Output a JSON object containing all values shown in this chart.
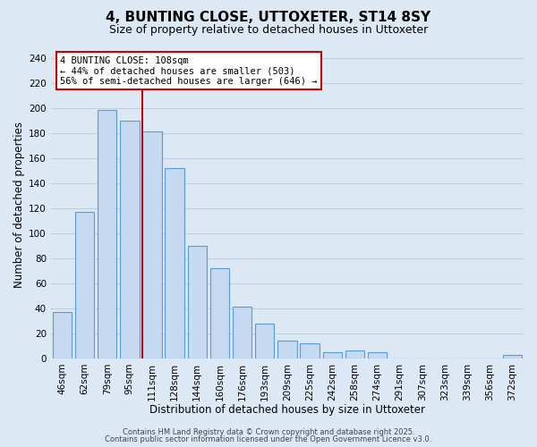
{
  "title": "4, BUNTING CLOSE, UTTOXETER, ST14 8SY",
  "subtitle": "Size of property relative to detached houses in Uttoxeter",
  "xlabel": "Distribution of detached houses by size in Uttoxeter",
  "ylabel": "Number of detached properties",
  "bar_labels": [
    "46sqm",
    "62sqm",
    "79sqm",
    "95sqm",
    "111sqm",
    "128sqm",
    "144sqm",
    "160sqm",
    "176sqm",
    "193sqm",
    "209sqm",
    "225sqm",
    "242sqm",
    "258sqm",
    "274sqm",
    "291sqm",
    "307sqm",
    "323sqm",
    "339sqm",
    "356sqm",
    "372sqm"
  ],
  "bar_values": [
    37,
    117,
    198,
    190,
    181,
    152,
    90,
    72,
    41,
    28,
    14,
    12,
    5,
    6,
    5,
    0,
    0,
    0,
    0,
    0,
    3
  ],
  "bar_color": "#c5d9f1",
  "bar_edge_color": "#5b9bd5",
  "grid_color": "#b8d0e8",
  "background_color": "#dce9f5",
  "vline_x_index": 4,
  "vline_color": "#cc0000",
  "annotation_text": "4 BUNTING CLOSE: 108sqm\n← 44% of detached houses are smaller (503)\n56% of semi-detached houses are larger (646) →",
  "annotation_box_color": "#ffffff",
  "annotation_box_edge": "#cc0000",
  "ylim": [
    0,
    245
  ],
  "yticks": [
    0,
    20,
    40,
    60,
    80,
    100,
    120,
    140,
    160,
    180,
    200,
    220,
    240
  ],
  "footer1": "Contains HM Land Registry data © Crown copyright and database right 2025.",
  "footer2": "Contains public sector information licensed under the Open Government Licence v3.0.",
  "title_fontsize": 11,
  "subtitle_fontsize": 9,
  "axis_label_fontsize": 8.5,
  "tick_fontsize": 7.5,
  "annotation_fontsize": 7.5,
  "footer_fontsize": 6
}
